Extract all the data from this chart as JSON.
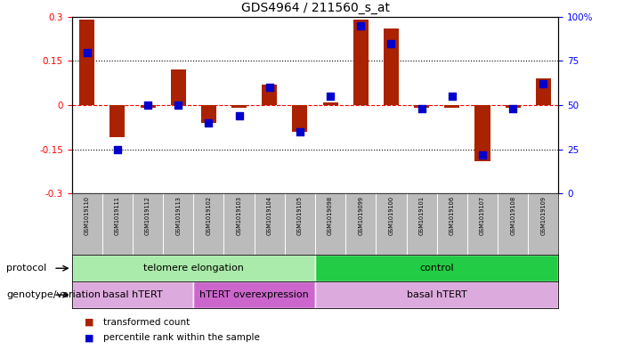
{
  "title": "GDS4964 / 211560_s_at",
  "samples": [
    "GSM1019110",
    "GSM1019111",
    "GSM1019112",
    "GSM1019113",
    "GSM1019102",
    "GSM1019103",
    "GSM1019104",
    "GSM1019105",
    "GSM1019098",
    "GSM1019099",
    "GSM1019100",
    "GSM1019101",
    "GSM1019106",
    "GSM1019107",
    "GSM1019108",
    "GSM1019109"
  ],
  "red_values": [
    0.29,
    -0.11,
    -0.01,
    0.12,
    -0.06,
    -0.01,
    0.07,
    -0.09,
    0.01,
    0.29,
    0.26,
    -0.01,
    -0.01,
    -0.19,
    -0.01,
    0.09
  ],
  "blue_values": [
    80,
    25,
    50,
    50,
    40,
    44,
    60,
    35,
    55,
    95,
    85,
    48,
    55,
    22,
    48,
    62
  ],
  "ylim_left": [
    -0.3,
    0.3
  ],
  "ylim_right": [
    0,
    100
  ],
  "yticks_left": [
    -0.3,
    -0.15,
    0.0,
    0.15,
    0.3
  ],
  "yticks_right": [
    0,
    25,
    50,
    75,
    100
  ],
  "protocol_groups": [
    {
      "label": "telomere elongation",
      "start": 0,
      "end": 8,
      "color": "#aaeaaa"
    },
    {
      "label": "control",
      "start": 8,
      "end": 16,
      "color": "#22cc44"
    }
  ],
  "genotype_groups": [
    {
      "label": "basal hTERT",
      "start": 0,
      "end": 4,
      "color": "#ddaadd"
    },
    {
      "label": "hTERT overexpression",
      "start": 4,
      "end": 8,
      "color": "#cc66cc"
    },
    {
      "label": "basal hTERT",
      "start": 8,
      "end": 16,
      "color": "#ddaadd"
    }
  ],
  "legend_red": "transformed count",
  "legend_blue": "percentile rank within the sample",
  "red_color": "#AA2200",
  "blue_color": "#0000CC",
  "bar_width": 0.5,
  "dot_size": 30,
  "bg_color": "#FFFFFF",
  "plot_bg": "#FFFFFF",
  "tick_area_color": "#BBBBBB"
}
